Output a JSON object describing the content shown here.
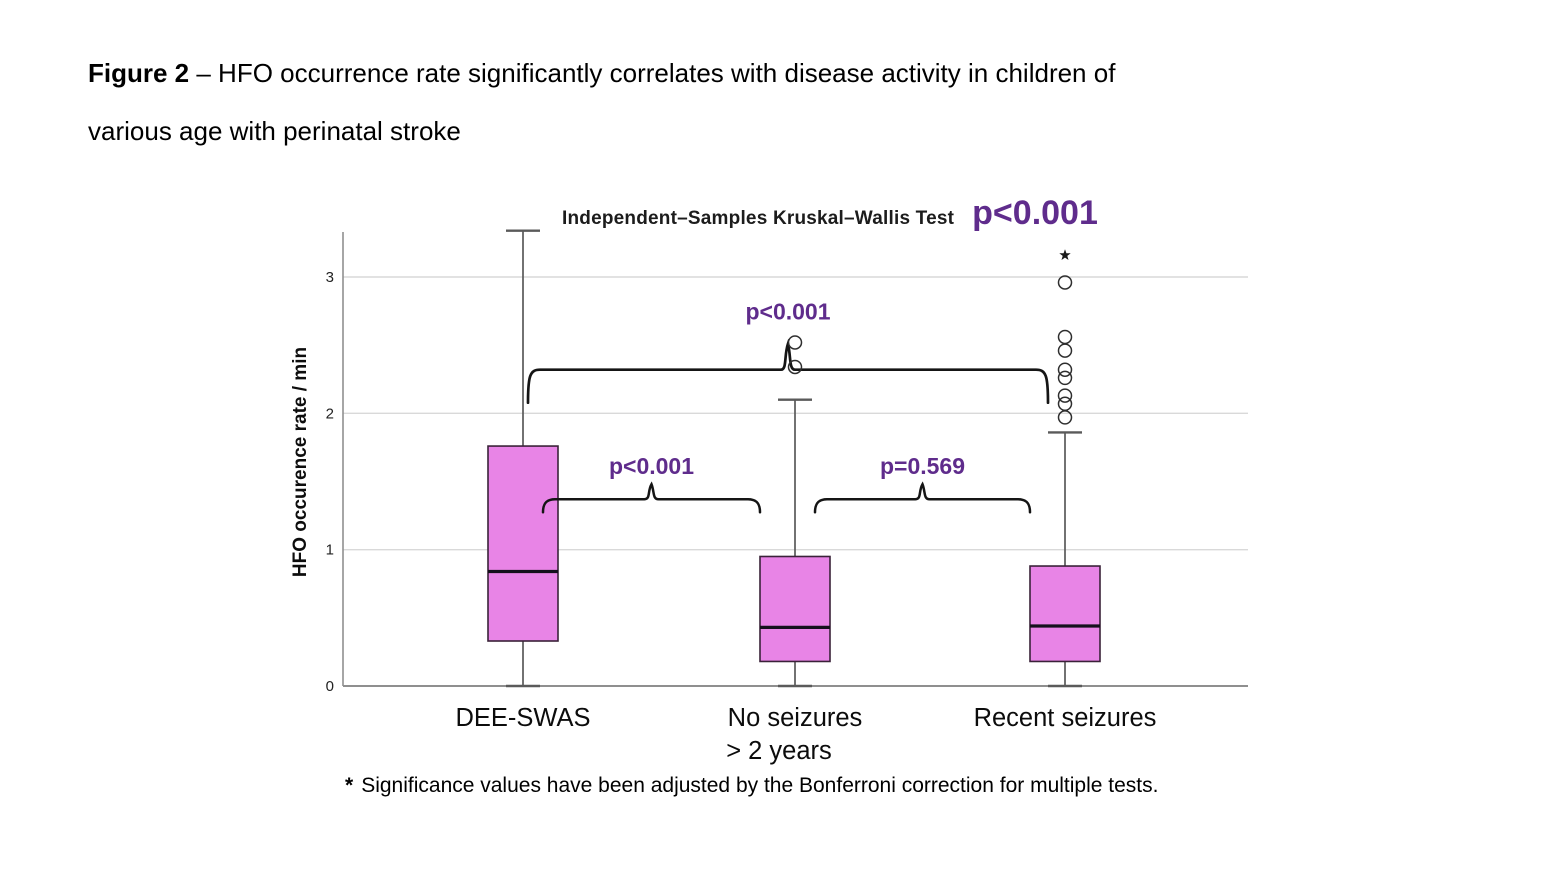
{
  "caption": {
    "bold": "Figure 2",
    "line1": "– HFO occurrence rate significantly correlates with disease activity in children of",
    "line2": "various age with perinatal stroke"
  },
  "footnote": {
    "star": "*",
    "text": "Significance values have been adjusted by the Bonferroni correction for multiple tests."
  },
  "colors": {
    "box_fill": "#e884e6",
    "box_border": "#3a2239",
    "median": "#14101c",
    "whisker": "#5a5a5a",
    "grid": "#d9d9d9",
    "axis": "#8f8f8f",
    "bracket": "#151515",
    "purple": "#5f2c8c",
    "text": "#111111",
    "outlier": "#2e2e2e"
  },
  "chart_data": {
    "type": "boxplot",
    "title": "Independent–Samples Kruskal–Wallis Test",
    "overall_p": "p<0.001",
    "ylabel": "HFO occurence rate / min",
    "ylim": [
      0,
      3.4
    ],
    "yticks": [
      0,
      1,
      2,
      3
    ],
    "grid": "horizontal",
    "categories": [
      [
        "DEE-SWAS"
      ],
      [
        "No seizures",
        "> 2 years"
      ],
      [
        "Recent seizures"
      ]
    ],
    "boxes": [
      {
        "category": "DEE-SWAS",
        "whisker_low": 0,
        "q1": 0.33,
        "median": 0.84,
        "q3": 1.76,
        "whisker_high": 3.34,
        "outliers": [],
        "extremes": []
      },
      {
        "category": "No seizures > 2 years",
        "whisker_low": 0,
        "q1": 0.18,
        "median": 0.43,
        "q3": 0.95,
        "whisker_high": 2.1,
        "outliers": [
          2.52,
          2.34
        ],
        "extremes": []
      },
      {
        "category": "Recent seizures",
        "whisker_low": 0,
        "q1": 0.18,
        "median": 0.44,
        "q3": 0.88,
        "whisker_high": 1.86,
        "outliers": [
          2.96,
          2.56,
          2.46,
          2.32,
          2.26,
          2.13,
          2.07,
          1.97
        ],
        "extremes": [
          3.16
        ]
      }
    ],
    "comparisons": [
      {
        "from": 0,
        "to": 2,
        "label": "p<0.001",
        "line_value": 2.32,
        "style": "outer"
      },
      {
        "from": 0,
        "to": 1,
        "label": "p<0.001",
        "line_value": 1.37,
        "style": "inner"
      },
      {
        "from": 1,
        "to": 2,
        "label": "p=0.569",
        "line_value": 1.37,
        "style": "inner"
      }
    ],
    "legend_position": "none"
  }
}
